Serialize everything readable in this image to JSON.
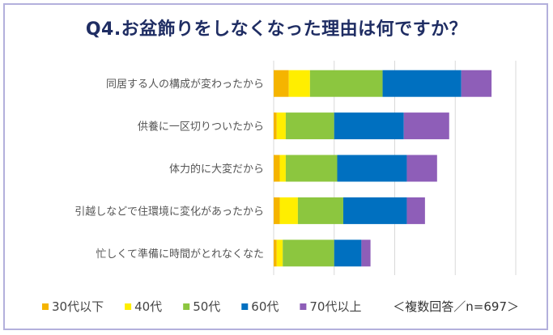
{
  "chart_data": {
    "type": "bar",
    "orientation": "horizontal",
    "stacked": true,
    "title": "Q4.お盆飾りをしなくなった理由は何ですか？",
    "categories": [
      "同居する人の構成が変わったから",
      "供養に一区切りついたから",
      "体力的に大変だから",
      "引越しなどで住環境に変化があったから",
      "忙しくて準備に時間がとれなくなた"
    ],
    "series": [
      {
        "name": "30代以下",
        "color": "#f5b400",
        "values": [
          5,
          1,
          2,
          2,
          1
        ]
      },
      {
        "name": "40代",
        "color": "#ffee00",
        "values": [
          7,
          3,
          2,
          6,
          2
        ]
      },
      {
        "name": "50代",
        "color": "#8cc63f",
        "values": [
          24,
          16,
          17,
          15,
          17
        ]
      },
      {
        "name": "60代",
        "color": "#0070c0",
        "values": [
          26,
          23,
          23,
          21,
          9
        ]
      },
      {
        "name": "70代以上",
        "color": "#8e5eb8",
        "values": [
          10,
          15,
          10,
          6,
          3
        ]
      }
    ],
    "xlim": [
      0,
      80
    ],
    "grid": true,
    "legend": "bottom",
    "note": "＜複数回答／n=697＞"
  }
}
